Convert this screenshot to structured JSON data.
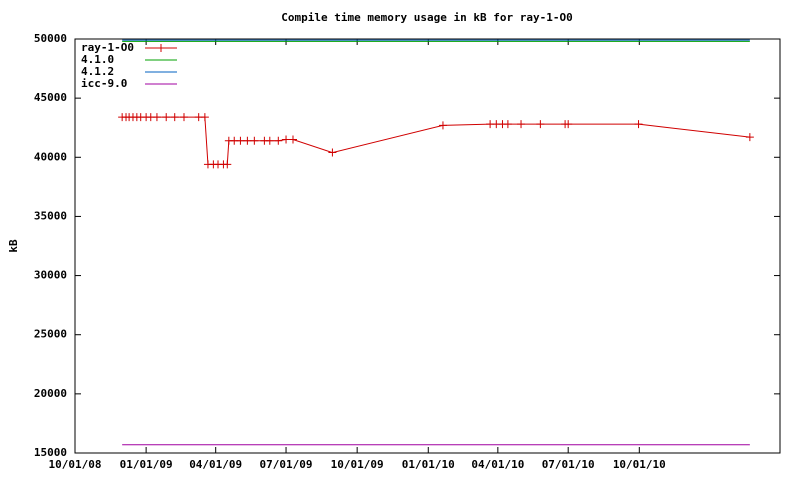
{
  "chart_data": {
    "type": "line",
    "title": "Compile time memory usage in kB for ray-1-O0",
    "y_label": "kB",
    "xlim": [
      "2008-10-01",
      "2011-04-01"
    ],
    "xticks": [
      {
        "value": "2008-10-01",
        "label": "10/01/08"
      },
      {
        "value": "2009-01-01",
        "label": "01/01/09"
      },
      {
        "value": "2009-04-01",
        "label": "04/01/09"
      },
      {
        "value": "2009-07-01",
        "label": "07/01/09"
      },
      {
        "value": "2009-10-01",
        "label": "10/01/09"
      },
      {
        "value": "2010-01-01",
        "label": "01/01/10"
      },
      {
        "value": "2010-04-01",
        "label": "04/01/10"
      },
      {
        "value": "2010-07-01",
        "label": "07/01/10"
      },
      {
        "value": "2010-10-01",
        "label": "10/01/10"
      }
    ],
    "ylim": [
      15000,
      50000
    ],
    "yticks": [
      15000,
      20000,
      25000,
      30000,
      35000,
      40000,
      45000,
      50000
    ],
    "legend": "top-left",
    "series": [
      {
        "name": "ray-1-O0",
        "color": "#d00000",
        "points": true,
        "x": [
          "2008-12-01",
          "2008-12-06",
          "2008-12-10",
          "2008-12-15",
          "2008-12-20",
          "2008-12-25",
          "2009-01-01",
          "2009-01-07",
          "2009-01-15",
          "2009-01-27",
          "2009-02-07",
          "2009-02-19",
          "2009-03-10",
          "2009-03-18",
          "2009-03-22",
          "2009-03-29",
          "2009-04-04",
          "2009-04-11",
          "2009-04-16",
          "2009-04-18",
          "2009-04-25",
          "2009-05-03",
          "2009-05-12",
          "2009-05-21",
          "2009-06-03",
          "2009-06-10",
          "2009-06-21",
          "2009-07-01",
          "2009-07-10",
          "2009-08-30",
          "2010-01-20",
          "2010-03-22",
          "2010-03-30",
          "2010-04-07",
          "2010-04-14",
          "2010-05-01",
          "2010-05-26",
          "2010-06-27",
          "2010-07-01",
          "2010-09-30",
          "2011-02-21"
        ],
        "values": [
          43400,
          43400,
          43400,
          43400,
          43400,
          43400,
          43400,
          43400,
          43400,
          43400,
          43400,
          43400,
          43400,
          43400,
          39400,
          39400,
          39400,
          39400,
          39400,
          41400,
          41400,
          41400,
          41400,
          41400,
          41400,
          41400,
          41400,
          41500,
          41500,
          40400,
          42700,
          42800,
          42800,
          42800,
          42800,
          42800,
          42800,
          42800,
          42800,
          42800,
          41700
        ]
      },
      {
        "name": "4.1.0",
        "color": "#00a000",
        "x": [
          "2008-12-01",
          "2011-02-21"
        ],
        "values": [
          49800,
          49800
        ]
      },
      {
        "name": "4.1.2",
        "color": "#0060c0",
        "x": [
          "2008-12-01",
          "2011-02-21"
        ],
        "values": [
          49900,
          49900
        ]
      },
      {
        "name": "icc-9.0",
        "color": "#a000a0",
        "x": [
          "2008-12-01",
          "2011-02-21"
        ],
        "values": [
          15700,
          15700
        ]
      }
    ]
  }
}
